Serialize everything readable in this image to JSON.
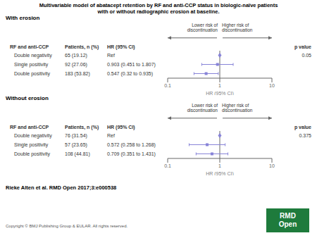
{
  "title": "Multivariable model of abatacept retention by RF and anti-CCP status in biologic-naïve patients",
  "subtitle": "with or without radiographic erosion at baseline.",
  "chart_data": [
    {
      "type": "forest",
      "title": "With erosion",
      "headers": [
        "RF and anti-CCP",
        "Patients, n (%)",
        "HR (95% CI)",
        "p value"
      ],
      "categories": [
        "Double negativity",
        "Single positivity",
        "Double positivity"
      ],
      "patients": [
        "65 (19.12)",
        "92 (27.06)",
        "183 (53.82)"
      ],
      "hr_text": [
        "Ref",
        "0.903 (0.451 to 1.807)",
        "0.547 (0.32 to 0.935)"
      ],
      "values": [
        1.0,
        0.903,
        0.547
      ],
      "ci_lo": [
        null,
        0.451,
        0.32
      ],
      "ci_hi": [
        null,
        1.807,
        0.935
      ],
      "pvalue": "0.05",
      "xlabel": "HR (95% CI)",
      "log": "x",
      "xlim": [
        0.1,
        10
      ],
      "xticks": [
        0.1,
        1,
        10
      ],
      "reference": 1,
      "annotations": [
        "Lower risk of\ndiscontinuation",
        "Higher risk of\ndiscontinuation"
      ]
    },
    {
      "type": "forest",
      "title": "Without erosion",
      "headers": [
        "RF and anti-CCP",
        "Patients, n (%)",
        "HR (95% CI)",
        "p value"
      ],
      "categories": [
        "Double negativity",
        "Single positivity",
        "Double positivity"
      ],
      "patients": [
        "76 (31.54)",
        "57 (23.65)",
        "108 (44.81)"
      ],
      "hr_text": [
        "Ref",
        "0.572 (0.258 to 1.268)",
        "0.709 (0.351 to 1.431)"
      ],
      "values": [
        1.0,
        0.572,
        0.709
      ],
      "ci_lo": [
        null,
        0.258,
        0.351
      ],
      "ci_hi": [
        null,
        1.268,
        1.431
      ],
      "pvalue": "0.375",
      "xlabel": "HR (95% CI)",
      "log": "x",
      "xlim": [
        0.1,
        10
      ],
      "xticks": [
        0.1,
        1,
        10
      ],
      "reference": 1,
      "annotations": [
        "Lower risk of\ndiscontinuation",
        "Higher risk of\ndiscontinuation"
      ]
    }
  ],
  "annotations": [
    "Rieke Alten et al. RMD Open 2017;3:e000538",
    "Copyright © BMJ Publishing Group & EULAR. All rights reserved."
  ],
  "badge": {
    "text": "RMD\nOpen",
    "color": "#1e7b3c"
  }
}
